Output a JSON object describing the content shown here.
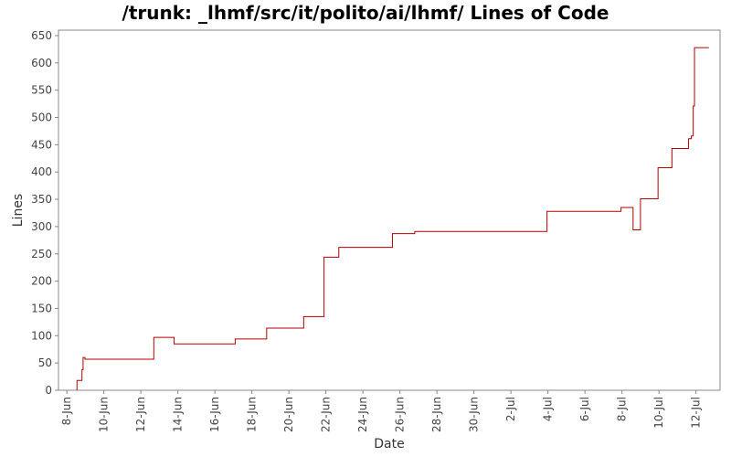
{
  "chart_data": {
    "type": "line",
    "title": "/trunk: _lhmf/src/it/polito/ai/lhmf/ Lines of Code",
    "xlabel": "Date",
    "ylabel": "Lines",
    "ylim": [
      0,
      660
    ],
    "yticks": [
      0,
      50,
      100,
      150,
      200,
      250,
      300,
      350,
      400,
      450,
      500,
      550,
      600,
      650
    ],
    "xticks": [
      {
        "label": "8-Jun",
        "day": 8
      },
      {
        "label": "10-Jun",
        "day": 10
      },
      {
        "label": "12-Jun",
        "day": 12
      },
      {
        "label": "14-Jun",
        "day": 14
      },
      {
        "label": "16-Jun",
        "day": 16
      },
      {
        "label": "18-Jun",
        "day": 18
      },
      {
        "label": "20-Jun",
        "day": 20
      },
      {
        "label": "22-Jun",
        "day": 22
      },
      {
        "label": "24-Jun",
        "day": 24
      },
      {
        "label": "26-Jun",
        "day": 26
      },
      {
        "label": "28-Jun",
        "day": 28
      },
      {
        "label": "30-Jun",
        "day": 30
      },
      {
        "label": "2-Jul",
        "day": 32
      },
      {
        "label": "4-Jul",
        "day": 34
      },
      {
        "label": "6-Jul",
        "day": 36
      },
      {
        "label": "8-Jul",
        "day": 38
      },
      {
        "label": "10-Jul",
        "day": 40
      },
      {
        "label": "12-Jul",
        "day": 42
      }
    ],
    "xlim": [
      7.55,
      43.3
    ],
    "color": "#b40000",
    "grid": false,
    "series": [
      {
        "name": "",
        "points": [
          [
            8.55,
            0
          ],
          [
            8.55,
            18
          ],
          [
            8.82,
            18
          ],
          [
            8.82,
            38
          ],
          [
            8.88,
            38
          ],
          [
            8.88,
            60
          ],
          [
            8.98,
            60
          ],
          [
            8.98,
            57
          ],
          [
            12.7,
            57
          ],
          [
            12.7,
            97
          ],
          [
            13.8,
            97
          ],
          [
            13.8,
            85
          ],
          [
            17.1,
            85
          ],
          [
            17.1,
            94
          ],
          [
            18.8,
            94
          ],
          [
            18.8,
            114
          ],
          [
            20.8,
            114
          ],
          [
            20.8,
            135
          ],
          [
            21.9,
            135
          ],
          [
            21.9,
            244
          ],
          [
            22.7,
            244
          ],
          [
            22.7,
            262
          ],
          [
            25.6,
            262
          ],
          [
            25.6,
            287
          ],
          [
            26.8,
            287
          ],
          [
            26.8,
            291
          ],
          [
            33.95,
            291
          ],
          [
            33.95,
            328
          ],
          [
            37.95,
            328
          ],
          [
            37.95,
            335
          ],
          [
            38.6,
            335
          ],
          [
            38.6,
            294
          ],
          [
            39.0,
            294
          ],
          [
            39.0,
            351
          ],
          [
            39.95,
            351
          ],
          [
            39.95,
            408
          ],
          [
            40.7,
            408
          ],
          [
            40.7,
            443
          ],
          [
            41.6,
            443
          ],
          [
            41.6,
            461
          ],
          [
            41.75,
            461
          ],
          [
            41.75,
            466
          ],
          [
            41.85,
            466
          ],
          [
            41.85,
            521
          ],
          [
            41.92,
            521
          ],
          [
            41.92,
            628
          ],
          [
            42.7,
            628
          ]
        ]
      }
    ]
  }
}
